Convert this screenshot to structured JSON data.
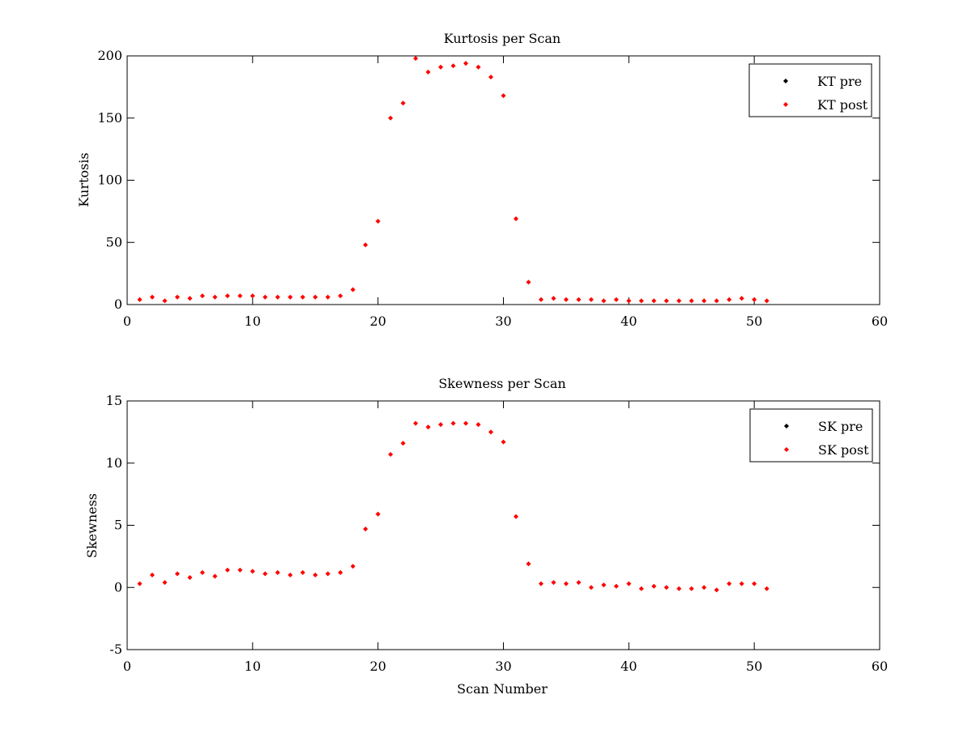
{
  "chart_data": [
    {
      "type": "scatter",
      "title": "Kurtosis per Scan",
      "xlabel": "",
      "ylabel": "Kurtosis",
      "xlim": [
        0,
        60
      ],
      "ylim": [
        0,
        200
      ],
      "xticks": [
        0,
        10,
        20,
        30,
        40,
        50,
        60
      ],
      "yticks": [
        0,
        50,
        100,
        150,
        200
      ],
      "grid": false,
      "legend_position": "top-right",
      "series": [
        {
          "name": "KT pre",
          "color": "#000000",
          "x": [],
          "y": []
        },
        {
          "name": "KT post",
          "color": "#ff0000",
          "x": [
            1,
            2,
            3,
            4,
            5,
            6,
            7,
            8,
            9,
            10,
            11,
            12,
            13,
            14,
            15,
            16,
            17,
            18,
            19,
            20,
            21,
            22,
            23,
            24,
            25,
            26,
            27,
            28,
            29,
            30,
            31,
            32,
            33,
            34,
            35,
            36,
            37,
            38,
            39,
            40,
            41,
            42,
            43,
            44,
            45,
            46,
            47,
            48,
            49,
            50,
            51
          ],
          "y": [
            4,
            6,
            3,
            6,
            5,
            7,
            6,
            7,
            7,
            7,
            6,
            6,
            6,
            6,
            6,
            6,
            7,
            12,
            48,
            67,
            150,
            162,
            198,
            187,
            191,
            192,
            194,
            191,
            183,
            168,
            69,
            18,
            4,
            5,
            4,
            4,
            4,
            3,
            4,
            3,
            3,
            3,
            3,
            3,
            3,
            3,
            3,
            4,
            5,
            4,
            3
          ]
        }
      ]
    },
    {
      "type": "scatter",
      "title": "Skewness per Scan",
      "xlabel": "Scan Number",
      "ylabel": "Skewness",
      "xlim": [
        0,
        60
      ],
      "ylim": [
        -5,
        15
      ],
      "xticks": [
        0,
        10,
        20,
        30,
        40,
        50,
        60
      ],
      "yticks": [
        -5,
        0,
        5,
        10,
        15
      ],
      "grid": false,
      "legend_position": "top-right",
      "series": [
        {
          "name": "SK pre",
          "color": "#000000",
          "x": [],
          "y": []
        },
        {
          "name": "SK post",
          "color": "#ff0000",
          "x": [
            1,
            2,
            3,
            4,
            5,
            6,
            7,
            8,
            9,
            10,
            11,
            12,
            13,
            14,
            15,
            16,
            17,
            18,
            19,
            20,
            21,
            22,
            23,
            24,
            25,
            26,
            27,
            28,
            29,
            30,
            31,
            32,
            33,
            34,
            35,
            36,
            37,
            38,
            39,
            40,
            41,
            42,
            43,
            44,
            45,
            46,
            47,
            48,
            49,
            50,
            51
          ],
          "y": [
            0.3,
            1.0,
            0.4,
            1.1,
            0.8,
            1.2,
            0.9,
            1.4,
            1.4,
            1.3,
            1.1,
            1.2,
            1.0,
            1.2,
            1.0,
            1.1,
            1.2,
            1.7,
            4.7,
            5.9,
            10.7,
            11.6,
            13.2,
            12.9,
            13.1,
            13.2,
            13.2,
            13.1,
            12.5,
            11.7,
            5.7,
            1.9,
            0.3,
            0.4,
            0.3,
            0.4,
            0.0,
            0.2,
            0.1,
            0.3,
            -0.1,
            0.1,
            0.0,
            -0.1,
            -0.1,
            0.0,
            -0.2,
            0.3,
            0.3,
            0.3,
            -0.1
          ]
        }
      ]
    }
  ]
}
